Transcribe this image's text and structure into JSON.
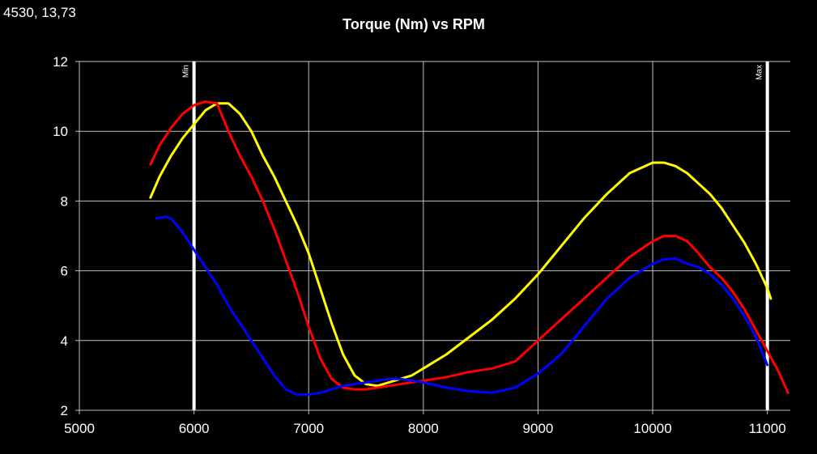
{
  "cursor_readout": "4530, 13,73",
  "chart_data": {
    "type": "line",
    "title": "Torque (Nm) vs RPM",
    "xlabel": "",
    "ylabel": "",
    "xlim": [
      5000,
      11200
    ],
    "ylim": [
      2,
      12
    ],
    "x_ticks": [
      5000,
      6000,
      7000,
      8000,
      9000,
      10000,
      11000
    ],
    "y_ticks": [
      2,
      4,
      6,
      8,
      10,
      12
    ],
    "grid": true,
    "background_color": "#000000",
    "grid_color": "#bfbfbf",
    "text_color": "#ffffff",
    "markers": [
      {
        "label": "Min",
        "x": 6000,
        "color": "#ffffff"
      },
      {
        "label": "Max",
        "x": 11000,
        "color": "#ffffff"
      }
    ],
    "series": [
      {
        "color": "#ffff00",
        "x": [
          5620,
          5700,
          5800,
          5900,
          6000,
          6100,
          6200,
          6300,
          6400,
          6500,
          6600,
          6700,
          6800,
          6900,
          7000,
          7100,
          7200,
          7300,
          7400,
          7500,
          7600,
          7700,
          7800,
          7900,
          8000,
          8200,
          8400,
          8600,
          8800,
          9000,
          9200,
          9400,
          9600,
          9800,
          10000,
          10100,
          10200,
          10300,
          10400,
          10500,
          10600,
          10700,
          10800,
          10900,
          11000,
          11030
        ],
        "y": [
          8.1,
          8.7,
          9.3,
          9.8,
          10.2,
          10.6,
          10.8,
          10.8,
          10.5,
          10.0,
          9.3,
          8.7,
          8.0,
          7.3,
          6.5,
          5.5,
          4.5,
          3.6,
          3.0,
          2.75,
          2.7,
          2.8,
          2.9,
          3.0,
          3.2,
          3.6,
          4.1,
          4.6,
          5.2,
          5.9,
          6.7,
          7.5,
          8.2,
          8.8,
          9.1,
          9.1,
          9.0,
          8.8,
          8.5,
          8.2,
          7.8,
          7.3,
          6.8,
          6.2,
          5.5,
          5.2
        ]
      },
      {
        "color": "#ff0000",
        "x": [
          5620,
          5700,
          5800,
          5900,
          6000,
          6100,
          6200,
          6300,
          6400,
          6500,
          6600,
          6700,
          6800,
          6900,
          7000,
          7100,
          7200,
          7300,
          7400,
          7500,
          7600,
          7700,
          7800,
          7900,
          8000,
          8200,
          8400,
          8600,
          8800,
          9000,
          9200,
          9400,
          9600,
          9800,
          10000,
          10100,
          10200,
          10300,
          10400,
          10500,
          10600,
          10700,
          10800,
          10900,
          11000,
          11100,
          11180
        ],
        "y": [
          9.05,
          9.6,
          10.1,
          10.5,
          10.75,
          10.85,
          10.8,
          10.0,
          9.3,
          8.7,
          8.0,
          7.2,
          6.3,
          5.4,
          4.4,
          3.5,
          2.9,
          2.65,
          2.6,
          2.6,
          2.65,
          2.7,
          2.75,
          2.8,
          2.85,
          2.95,
          3.1,
          3.2,
          3.4,
          4.0,
          4.6,
          5.2,
          5.8,
          6.4,
          6.85,
          7.0,
          7.0,
          6.85,
          6.5,
          6.1,
          5.8,
          5.4,
          4.9,
          4.3,
          3.7,
          3.1,
          2.5
        ]
      },
      {
        "color": "#0000ff",
        "x": [
          5670,
          5750,
          5800,
          5900,
          6000,
          6100,
          6200,
          6300,
          6400,
          6500,
          6600,
          6700,
          6800,
          6900,
          7000,
          7100,
          7200,
          7300,
          7400,
          7500,
          7600,
          7700,
          7800,
          7900,
          8000,
          8200,
          8400,
          8600,
          8800,
          9000,
          9200,
          9400,
          9600,
          9800,
          10000,
          10100,
          10200,
          10300,
          10400,
          10500,
          10600,
          10700,
          10800,
          10900,
          11000
        ],
        "y": [
          7.5,
          7.55,
          7.5,
          7.1,
          6.6,
          6.1,
          5.6,
          5.0,
          4.5,
          4.0,
          3.5,
          3.0,
          2.6,
          2.45,
          2.45,
          2.5,
          2.6,
          2.7,
          2.75,
          2.8,
          2.85,
          2.9,
          2.9,
          2.85,
          2.8,
          2.65,
          2.55,
          2.5,
          2.65,
          3.05,
          3.6,
          4.4,
          5.2,
          5.8,
          6.2,
          6.33,
          6.35,
          6.2,
          6.1,
          5.9,
          5.6,
          5.2,
          4.7,
          4.1,
          3.3
        ]
      }
    ]
  }
}
